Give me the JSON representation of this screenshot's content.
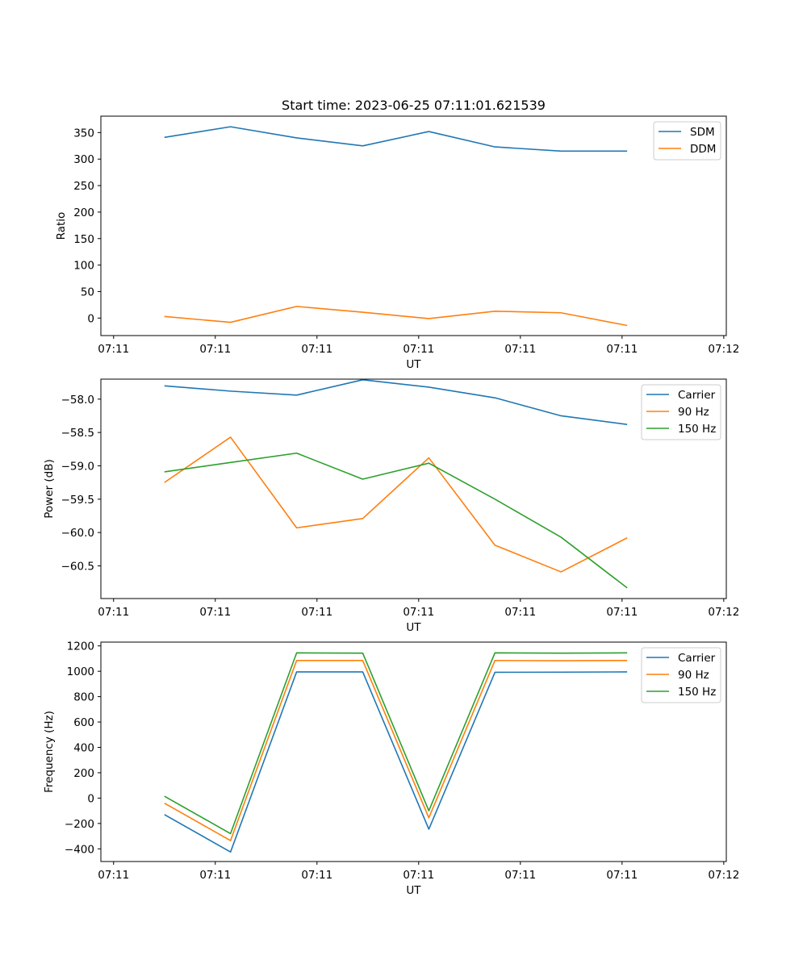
{
  "chart_data": [
    {
      "type": "line",
      "title": "Start time: 2023-06-25 07:11:01.621539",
      "xlabel": "UT",
      "ylabel": "Ratio",
      "x_tick_labels": [
        "07:11",
        "07:11",
        "07:11",
        "07:11",
        "07:11",
        "07:11",
        "07:12"
      ],
      "x_tick_seconds": [
        0,
        2,
        4,
        6,
        8,
        10,
        12
      ],
      "xlim_seconds": [
        -0.25,
        12.05
      ],
      "ylim": [
        -33,
        381
      ],
      "yticks": [
        0,
        50,
        100,
        150,
        200,
        250,
        300,
        350
      ],
      "y_tick_labels": [
        "0",
        "50",
        "100",
        "150",
        "200",
        "250",
        "300",
        "350"
      ],
      "legend": "top-right",
      "x_seconds": [
        1,
        2.3,
        3.6,
        4.9,
        6.2,
        7.5,
        8.8,
        10.1
      ],
      "series": [
        {
          "name": "SDM",
          "color": "#1f77b4",
          "values": [
            341,
            361,
            340,
            325,
            352,
            323,
            315,
            315
          ]
        },
        {
          "name": "DDM",
          "color": "#ff7f0e",
          "values": [
            3,
            -8,
            22,
            11,
            -1,
            13,
            10,
            -14
          ]
        }
      ]
    },
    {
      "type": "line",
      "title": "",
      "xlabel": "UT",
      "ylabel": "Power (dB)",
      "x_tick_labels": [
        "07:11",
        "07:11",
        "07:11",
        "07:11",
        "07:11",
        "07:11",
        "07:12"
      ],
      "x_tick_seconds": [
        0,
        2,
        4,
        6,
        8,
        10,
        12
      ],
      "xlim_seconds": [
        -0.25,
        12.05
      ],
      "ylim": [
        -60.99,
        -57.7
      ],
      "yticks": [
        -58.0,
        -58.5,
        -59.0,
        -59.5,
        -60.0,
        -60.5
      ],
      "y_tick_labels": [
        "−58.0",
        "−58.5",
        "−59.0",
        "−59.5",
        "−60.0",
        "−60.5"
      ],
      "legend": "top-right",
      "x_seconds": [
        1,
        2.3,
        3.6,
        4.9,
        6.2,
        7.5,
        8.8,
        10.1
      ],
      "series": [
        {
          "name": "Carrier",
          "color": "#1f77b4",
          "values": [
            -57.8,
            -57.88,
            -57.94,
            -57.71,
            -57.82,
            -57.98,
            -58.25,
            -58.38
          ]
        },
        {
          "name": "90 Hz",
          "color": "#ff7f0e",
          "values": [
            -59.25,
            -58.57,
            -59.93,
            -59.79,
            -58.88,
            -60.19,
            -60.59,
            -60.08
          ]
        },
        {
          "name": "150 Hz",
          "color": "#2ca02c",
          "values": [
            -59.09,
            -58.95,
            -58.81,
            -59.2,
            -58.96,
            -59.5,
            -60.07,
            -60.83
          ]
        }
      ]
    },
    {
      "type": "line",
      "title": "",
      "xlabel": "UT",
      "ylabel": "Frequency (Hz)",
      "x_tick_labels": [
        "07:11",
        "07:11",
        "07:11",
        "07:11",
        "07:11",
        "07:11",
        "07:12"
      ],
      "x_tick_seconds": [
        0,
        2,
        4,
        6,
        8,
        10,
        12
      ],
      "xlim_seconds": [
        -0.25,
        12.05
      ],
      "ylim": [
        -500,
        1230
      ],
      "yticks": [
        -400,
        -200,
        0,
        200,
        400,
        600,
        800,
        1000,
        1200
      ],
      "y_tick_labels": [
        "−400",
        "−200",
        "0",
        "200",
        "400",
        "600",
        "800",
        "1000",
        "1200"
      ],
      "legend": "top-right",
      "x_seconds": [
        1,
        2.3,
        3.6,
        4.9,
        6.2,
        7.5,
        8.8,
        10.1
      ],
      "series": [
        {
          "name": "Carrier",
          "color": "#1f77b4",
          "values": [
            -130,
            -425,
            995,
            995,
            -245,
            992,
            993,
            995
          ]
        },
        {
          "name": "90 Hz",
          "color": "#ff7f0e",
          "values": [
            -40,
            -335,
            1085,
            1085,
            -155,
            1085,
            1083,
            1085
          ]
        },
        {
          "name": "150 Hz",
          "color": "#2ca02c",
          "values": [
            15,
            -280,
            1145,
            1143,
            -100,
            1145,
            1143,
            1145
          ]
        }
      ]
    }
  ]
}
